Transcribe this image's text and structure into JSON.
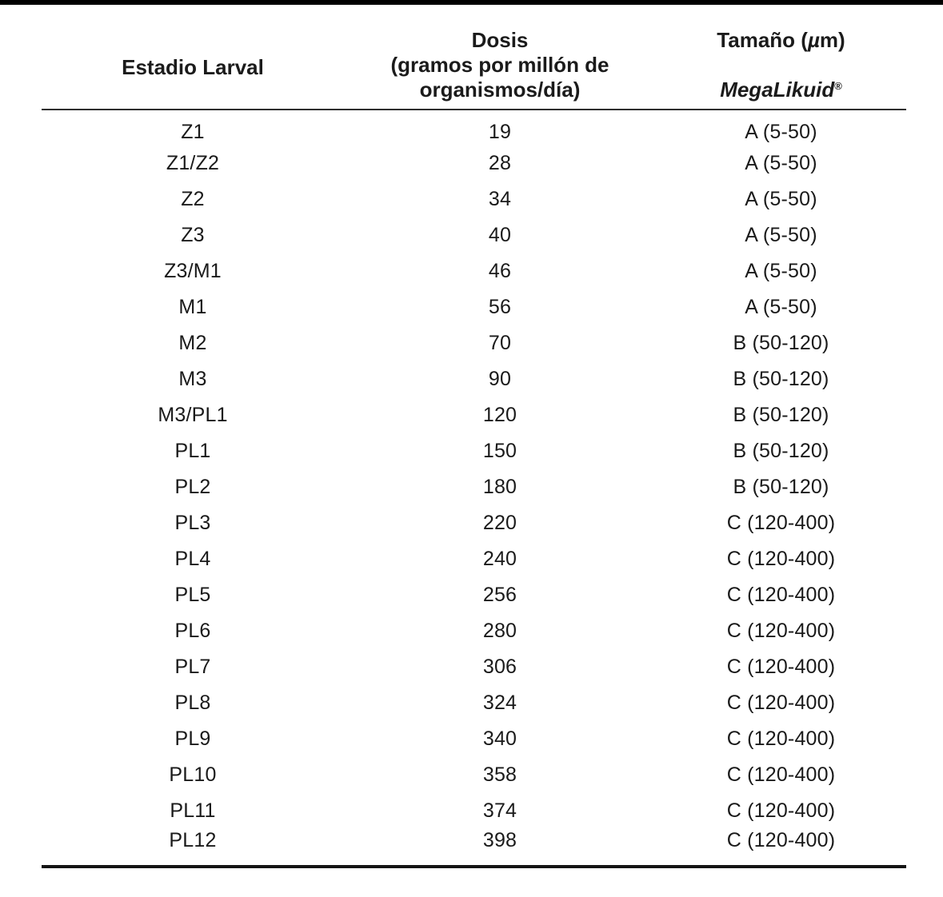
{
  "page": {
    "background": "#ffffff",
    "text_color": "#1b1b1b",
    "top_bar_color": "#000000",
    "header_rule_color": "#2e2e2e",
    "bottom_rule_color": "#141414"
  },
  "table": {
    "header": {
      "col1": "Estadio Larval",
      "col2_title": "Dosis",
      "col2_subtitle": "(gramos por millón de organismos/día)",
      "col3_title_prefix": "Tamaño (",
      "col3_title_mu": "µ",
      "col3_title_suffix": "m)",
      "col3_brand": "MegaLikuid",
      "col3_brand_mark": "®"
    },
    "rows": [
      {
        "estadio": "Z1",
        "dosis": "19",
        "tamano": "A (5-50)"
      },
      {
        "estadio": "Z1/Z2",
        "dosis": "28",
        "tamano": "A (5-50)"
      },
      {
        "estadio": "Z2",
        "dosis": "34",
        "tamano": "A (5-50)"
      },
      {
        "estadio": "Z3",
        "dosis": "40",
        "tamano": "A (5-50)"
      },
      {
        "estadio": "Z3/M1",
        "dosis": "46",
        "tamano": "A (5-50)"
      },
      {
        "estadio": "M1",
        "dosis": "56",
        "tamano": "A (5-50)"
      },
      {
        "estadio": "M2",
        "dosis": "70",
        "tamano": "B (50-120)"
      },
      {
        "estadio": "M3",
        "dosis": "90",
        "tamano": "B (50-120)"
      },
      {
        "estadio": "M3/PL1",
        "dosis": "120",
        "tamano": "B (50-120)"
      },
      {
        "estadio": "PL1",
        "dosis": "150",
        "tamano": "B (50-120)"
      },
      {
        "estadio": "PL2",
        "dosis": "180",
        "tamano": "B (50-120)"
      },
      {
        "estadio": "PL3",
        "dosis": "220",
        "tamano": "C (120-400)"
      },
      {
        "estadio": "PL4",
        "dosis": "240",
        "tamano": "C (120-400)"
      },
      {
        "estadio": "PL5",
        "dosis": "256",
        "tamano": "C (120-400)"
      },
      {
        "estadio": "PL6",
        "dosis": "280",
        "tamano": "C (120-400)"
      },
      {
        "estadio": "PL7",
        "dosis": "306",
        "tamano": "C (120-400)"
      },
      {
        "estadio": "PL8",
        "dosis": "324",
        "tamano": "C (120-400)"
      },
      {
        "estadio": "PL9",
        "dosis": "340",
        "tamano": "C (120-400)"
      },
      {
        "estadio": "PL10",
        "dosis": "358",
        "tamano": "C (120-400)"
      },
      {
        "estadio": "PL11",
        "dosis": "374",
        "tamano": "C (120-400)"
      },
      {
        "estadio": "PL12",
        "dosis": "398",
        "tamano": "C (120-400)"
      }
    ]
  }
}
